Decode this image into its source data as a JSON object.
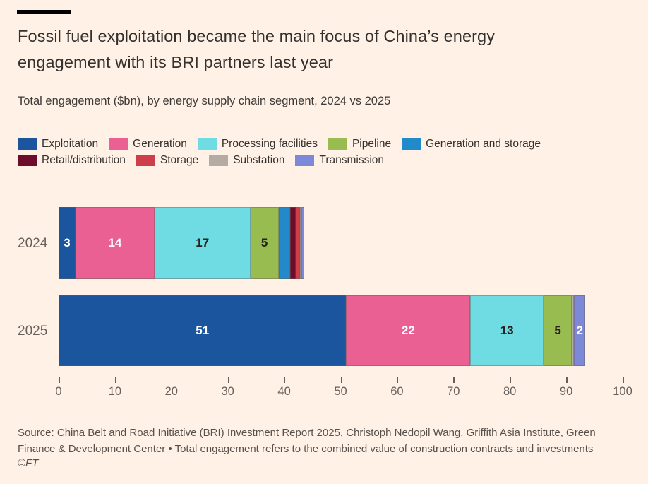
{
  "header": {
    "title": "Fossil fuel exploitation became the main focus of China’s energy engagement with its BRI partners last year",
    "subtitle": "Total engagement ($bn), by energy supply chain segment, 2024 vs 2025"
  },
  "colors": {
    "background": "#FFF1E5",
    "title_text": "#33302E",
    "muted_text": "#66605C",
    "axis": "#66605C"
  },
  "chart_data": {
    "type": "bar",
    "orientation": "horizontal",
    "stacked": true,
    "categories": [
      "2024",
      "2025"
    ],
    "series": [
      {
        "name": "Exploitation",
        "color": "#1A559E",
        "values": [
          3,
          51
        ],
        "labels": [
          "3",
          "51"
        ],
        "label_color": "#FFFFFF"
      },
      {
        "name": "Generation",
        "color": "#EA6092",
        "values": [
          14,
          22
        ],
        "labels": [
          "14",
          "22"
        ],
        "label_color": "#FFFFFF"
      },
      {
        "name": "Processing facilities",
        "color": "#6FDCE3",
        "values": [
          17,
          13
        ],
        "labels": [
          "17",
          "13"
        ],
        "label_color": "#26221F"
      },
      {
        "name": "Pipeline",
        "color": "#99BC51",
        "values": [
          5,
          5
        ],
        "labels": [
          "5",
          "5"
        ],
        "label_color": "#26221F"
      },
      {
        "name": "Generation and storage",
        "color": "#2289CB",
        "values": [
          2,
          0
        ],
        "labels": [
          "",
          ""
        ],
        "label_color": "#FFFFFF"
      },
      {
        "name": "Retail/distribution",
        "color": "#6E0D2B",
        "values": [
          1,
          0
        ],
        "labels": [
          "",
          ""
        ],
        "label_color": "#FFFFFF"
      },
      {
        "name": "Storage",
        "color": "#CE3D4A",
        "values": [
          0.8,
          0
        ],
        "labels": [
          "",
          ""
        ],
        "label_color": "#FFFFFF"
      },
      {
        "name": "Substation",
        "color": "#B4ACA4",
        "values": [
          0.2,
          0.4
        ],
        "labels": [
          "",
          ""
        ],
        "label_color": "#26221F"
      },
      {
        "name": "Transmission",
        "color": "#7D89D8",
        "values": [
          0.6,
          2
        ],
        "labels": [
          "",
          "2"
        ],
        "label_color": "#FFFFFF"
      }
    ],
    "xlim": [
      0,
      100
    ],
    "x_ticks": [
      0,
      10,
      20,
      30,
      40,
      50,
      60,
      70,
      80,
      90,
      100
    ],
    "xlabel": "",
    "ylabel": "",
    "legend_position": "top",
    "grid": false
  },
  "footer": {
    "source": "Source: China Belt and Road Initiative (BRI) Investment Report 2025, Christoph Nedopil Wang, Griffith Asia Institute, Green Finance & Development Center • Total engagement refers to the combined value of construction contracts and investments",
    "credit": "©FT"
  }
}
